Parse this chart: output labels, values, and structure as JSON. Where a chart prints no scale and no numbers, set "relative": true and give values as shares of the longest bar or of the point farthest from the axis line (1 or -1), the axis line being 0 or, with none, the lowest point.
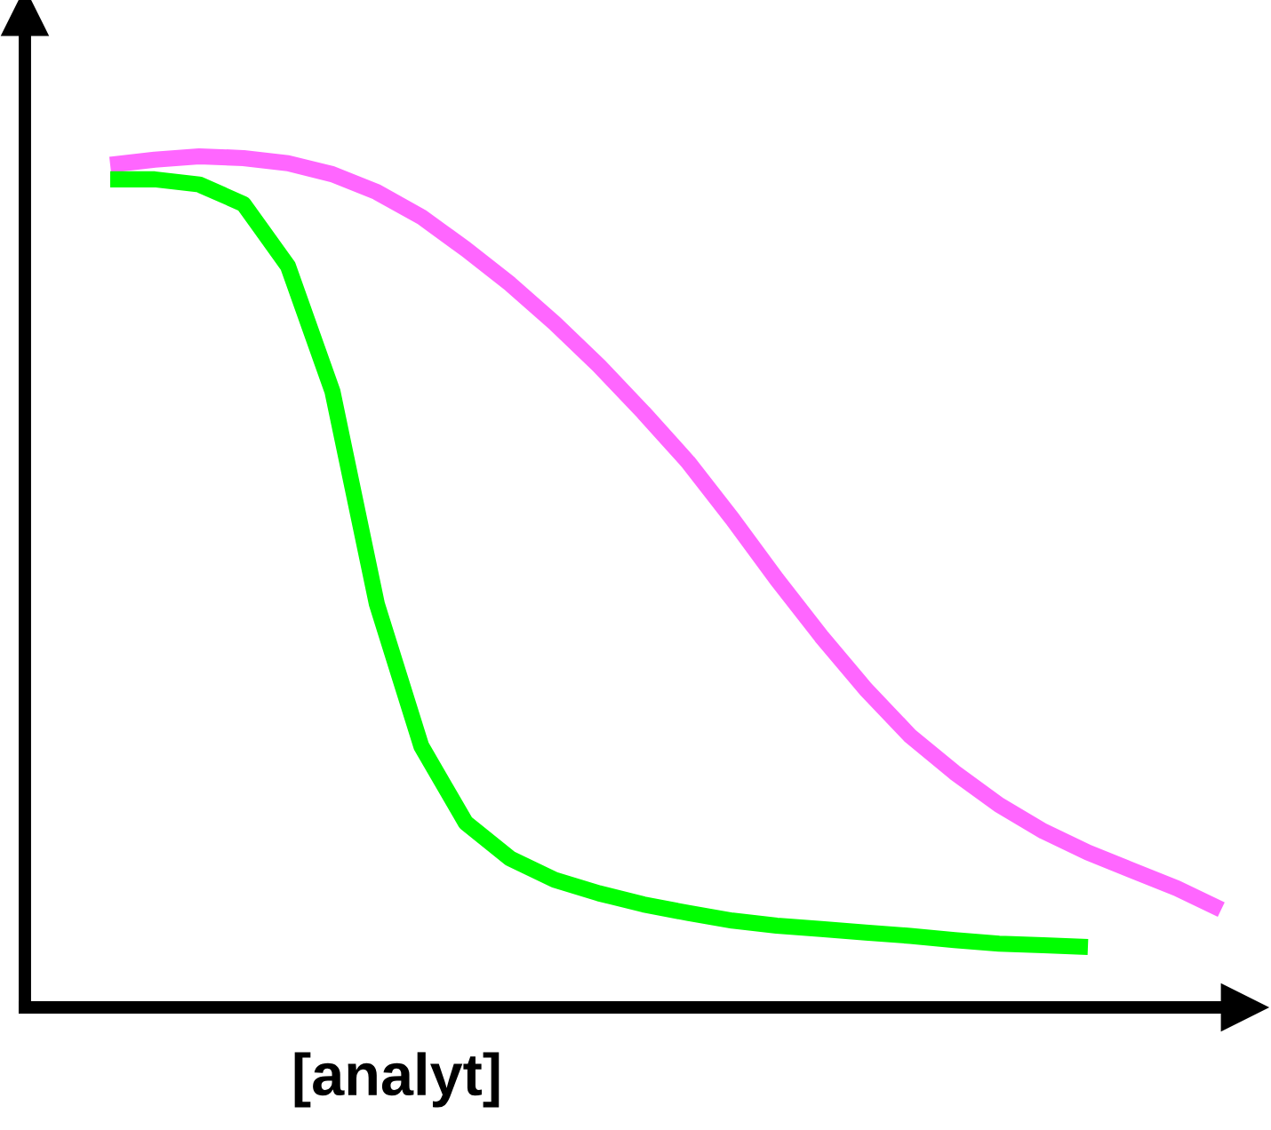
{
  "chart_data": {
    "type": "line",
    "relative": true,
    "xlabel": "[analyt]",
    "categories": [
      null,
      null,
      null,
      null,
      null,
      null,
      null,
      null,
      null,
      null,
      null,
      null,
      null,
      null,
      null,
      null,
      null,
      null,
      null,
      null,
      null,
      null,
      null,
      null,
      null,
      null
    ],
    "series": [
      {
        "color": "#ff66ff",
        "values": [
          0.99,
          0.996,
          1.0,
          0.998,
          0.992,
          0.979,
          0.958,
          0.929,
          0.891,
          0.85,
          0.804,
          0.754,
          0.699,
          0.641,
          0.574,
          0.503,
          0.436,
          0.374,
          0.319,
          0.276,
          0.238,
          0.207,
          0.182,
          0.161,
          0.14,
          0.115
        ]
      },
      {
        "color": "#00ff00",
        "values": [
          0.973,
          0.973,
          0.967,
          0.944,
          0.871,
          0.724,
          0.474,
          0.307,
          0.217,
          0.175,
          0.15,
          0.134,
          0.121,
          0.111,
          0.102,
          0.096,
          0.092,
          0.088,
          0.084,
          0.079,
          0.075,
          0.073,
          0.071,
          null,
          null,
          null
        ]
      }
    ],
    "grid": false,
    "marker": "none",
    "line_style": "solid"
  }
}
